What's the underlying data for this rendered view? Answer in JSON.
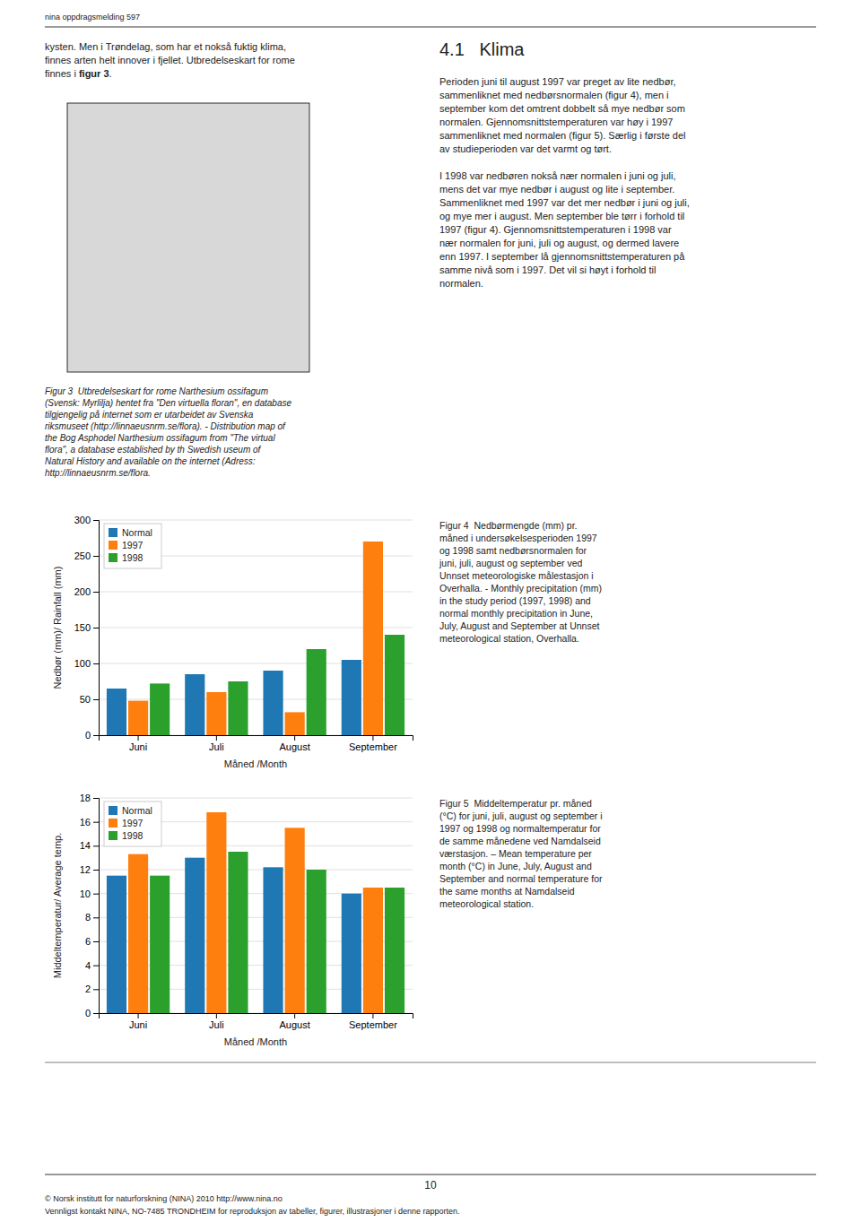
{
  "chart_data": [
    {
      "type": "bar",
      "xlabel": "Måned /Month",
      "ylabel": "Nedbør (mm)/ Rainfall (mm)",
      "categories": [
        "Juni",
        "Juli",
        "August",
        "September"
      ],
      "series": [
        {
          "name": "Normal",
          "values": [
            65,
            85,
            90,
            105
          ]
        },
        {
          "name": "1997",
          "values": [
            48,
            60,
            32,
            270
          ]
        },
        {
          "name": "1998",
          "values": [
            72,
            75,
            120,
            140
          ]
        }
      ],
      "ylim": [
        0,
        300
      ],
      "yticks": [
        0,
        50,
        100,
        150,
        200,
        250,
        300
      ],
      "grid": true,
      "legend": "upper left"
    },
    {
      "type": "bar",
      "xlabel": "Måned /Month",
      "ylabel": "Middeltemperatur/ Average temp.",
      "categories": [
        "Juni",
        "Juli",
        "August",
        "September"
      ],
      "series": [
        {
          "name": "Normal",
          "values": [
            11.5,
            13.0,
            12.2,
            10.0
          ]
        },
        {
          "name": "1997",
          "values": [
            13.3,
            16.8,
            15.5,
            10.5
          ]
        },
        {
          "name": "1998",
          "values": [
            11.5,
            13.5,
            12.0,
            10.5
          ]
        }
      ],
      "ylim": [
        0,
        18
      ],
      "yticks": [
        0,
        2,
        4,
        6,
        8,
        10,
        12,
        14,
        16,
        18
      ],
      "grid": true,
      "legend": "upper left"
    }
  ],
  "page_header": "nina oppdragsmelding 597",
  "section_title": "4.1   Klima",
  "left_text": [
    "kysten. Men i Trøndelag, som har et nokså fuktig klima,",
    "finnes arten helt innover i fjellet. Utbredelseskart for rome",
    "finnes i "
  ],
  "left_text_bold": "figur 3",
  "left_text_end": ".",
  "right_para1": [
    "Perioden juni til august 1997 var preget av lite nedbør,",
    "sammenliknet med nedbørsnormalen (figur 4), men i",
    "september kom det omtrent dobbelt så mye nedbør som",
    "normalen. Gjennomsnittstemperaturen var høy i 1997",
    "sammenliknet med normalen (figur 5). Særlig i første del",
    "av studieperioden var det varmt og tørt."
  ],
  "right_para2": [
    "I 1998 var nedbøren nokså nær normalen i juni og juli,",
    "mens det var mye nedbør i august og lite i september.",
    "Sammenliknet med 1997 var det mer nedbør i juni og juli,",
    "og mye mer i august. Men september ble tørr i forhold til",
    "1997 (figur 4). Gjennomsnittstemperaturen i 1998 var",
    "nær normalen for juni, juli og august, og dermed lavere",
    "enn 1997. I september lå gjennomsnittstemperaturen på",
    "samme nivå som i 1997. Det vil si høyt i forhold til",
    "normalen."
  ],
  "fig3_caption": [
    "Figur 3  Utbredelseskart for rome Narthesium ossifagum",
    "(Svensk: Myrlilja) hentet fra \"Den virtuella floran\", en database",
    "tilgjengelig på internet som er utarbeidet av Svenska",
    "riksmuseet (http://linnaeusnrm.se/flora). - Distribution map of",
    "the Bog Asphodel Narthesium ossifagum from \"The virtual",
    "flora\", a database established by th Swedish useum of",
    "Natural History and available on the internet (Adress:",
    "http://linnaeusnrm.se/flora."
  ],
  "fig4_caption": [
    "Figur 4  Nedbørmengde (mm) pr.",
    "måned i undersøkelsesperioden 1997",
    "og 1998 samt nedbørsnormalen for",
    "juni, juli, august og september ved",
    "Unnset meteorologiske målestasjon i",
    "Overhalla. - Monthly precipitation (mm)",
    "in the study period (1997, 1998) and",
    "normal monthly precipitation in June,",
    "July, August and September at Unnset",
    "meteorological station, Overhalla."
  ],
  "fig5_caption": [
    "Figur 5  Middeltemperatur pr. måned",
    "(°C) for juni, juli, august og september i",
    "1997 og 1998 og normaltemperatur for",
    "de samme månedene ved Namdalseid",
    "værstasjon. – Mean temperature per",
    "month (°C) in June, July, August and",
    "September and normal temperature for",
    "the same months at Namdalseid",
    "meteorological station."
  ],
  "page_number": "10",
  "footer1": "© Norsk institutt for naturforskning (NINA) 2010 http://www.nina.no",
  "footer2": "Vennligst kontakt NINA, NO-7485 TRONDHEIM for reproduksjon av tabeller, figurer, illustrasjoner i denne rapporten."
}
